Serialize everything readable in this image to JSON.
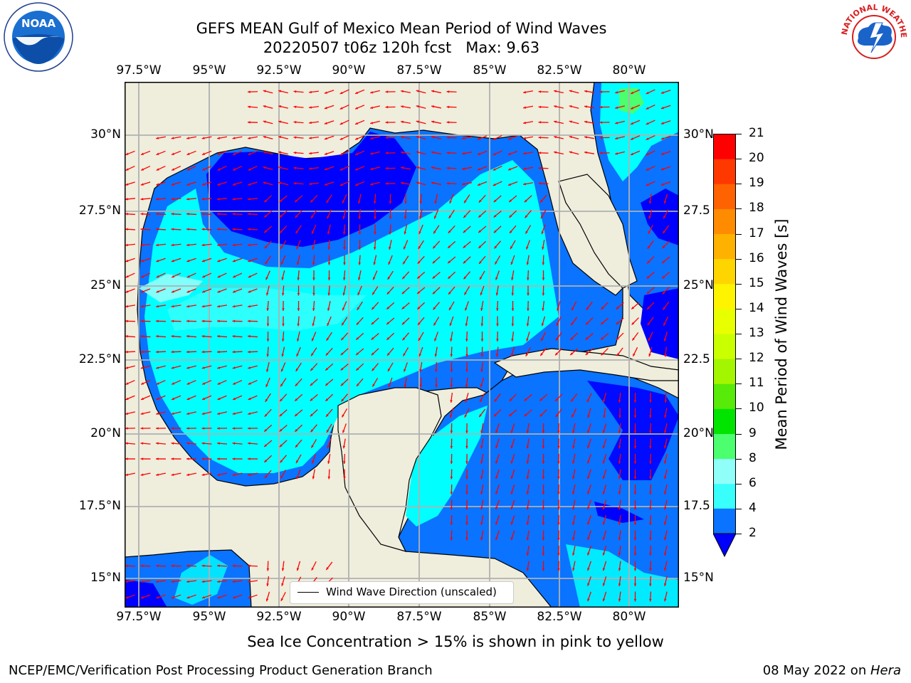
{
  "title": {
    "line1": "GEFS MEAN Gulf of Mexico Mean Period of Wind Waves",
    "line2": "20220507 t06z 120h fcst   Max: 9.63"
  },
  "logos": {
    "left": "NOAA",
    "right": "NATIONAL WEATHER SERVICE"
  },
  "map": {
    "lon_labels": [
      "97.5°W",
      "95°W",
      "92.5°W",
      "90°W",
      "87.5°W",
      "85°W",
      "82.5°W",
      "80°W"
    ],
    "lat_labels_left": [
      "30°N",
      "27.5°N",
      "25°N",
      "22.5°N",
      "20°N",
      "17.5°N",
      "15°N"
    ],
    "lat_labels_right": [
      "30°N",
      "27.5",
      "25°N",
      "22.5",
      "20°N",
      "17.5",
      "15°N"
    ],
    "legend_label": "Wind Wave Direction (unscaled)"
  },
  "colorbar": {
    "label": "Mean Period of Wind Waves [s]",
    "ticks": [
      "2",
      "4",
      "6",
      "8",
      "9",
      "10",
      "11",
      "12",
      "13",
      "14",
      "15",
      "16",
      "17",
      "18",
      "19",
      "20",
      "21"
    ],
    "colors": [
      "#0a73ff",
      "#00ffff",
      "#38fffc",
      "#90fff9",
      "#4bff6f",
      "#00e400",
      "#58ea08",
      "#a4f500",
      "#caff00",
      "#e8ff00",
      "#fff400",
      "#ffd500",
      "#ffb100",
      "#ff8b00",
      "#ff6200",
      "#ff3800",
      "#ff0000"
    ],
    "under_color": "#0000ff"
  },
  "chart_data": {
    "type": "heatmap",
    "title": "GEFS MEAN Gulf of Mexico Mean Period of Wind Waves",
    "subtitle": "20220507 t06z 120h fcst   Max: 9.63",
    "variable": "Mean Period of Wind Waves [s]",
    "max_value": 9.63,
    "lon_range": [
      "98.5°W",
      "78.5°W"
    ],
    "lat_range": [
      "14°N",
      "31.7°N"
    ],
    "colorbar_levels": [
      2,
      4,
      6,
      8,
      9,
      10,
      11,
      12,
      13,
      14,
      15,
      16,
      17,
      18,
      19,
      20,
      21
    ],
    "vector_field": "Wind Wave Direction (unscaled)"
  },
  "footer": {
    "note": "Sea Ice Concentration > 15% is shown in pink to yellow",
    "left": "NCEP/EMC/Verification Post Processing Product Generation Branch",
    "date": "08 May 2022 on ",
    "machine": "Hera"
  }
}
